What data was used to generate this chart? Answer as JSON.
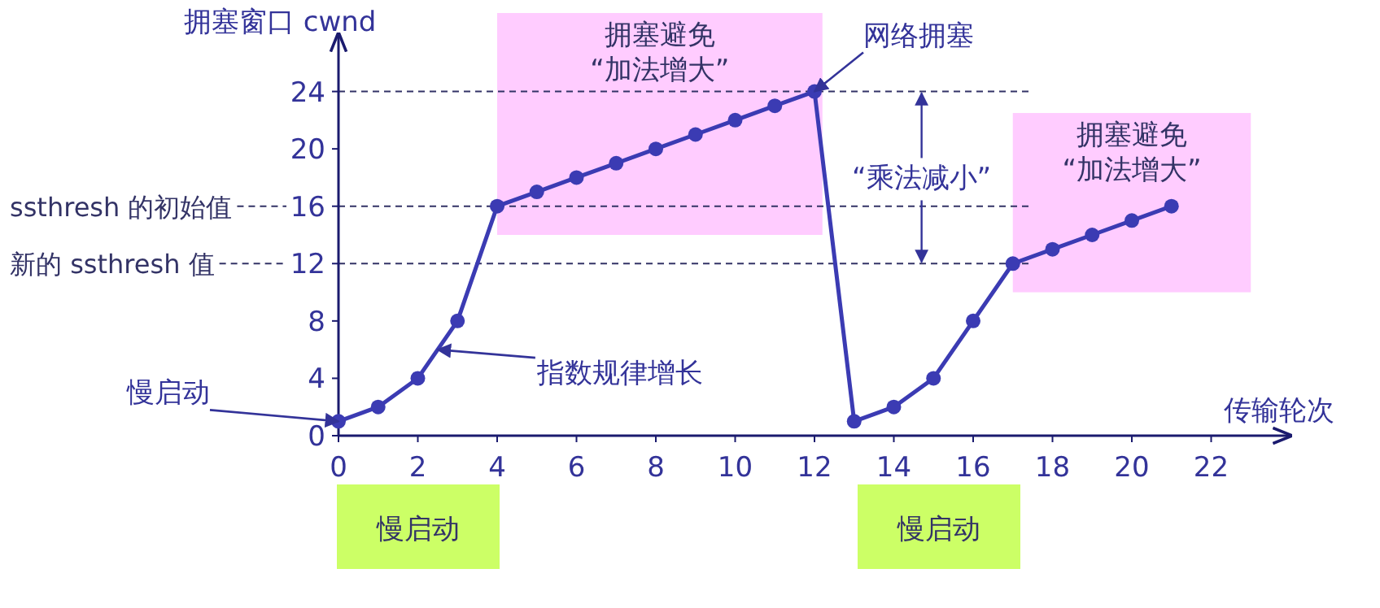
{
  "chart_data": {
    "type": "line",
    "xlabel": "传输轮次",
    "ylabel": "拥塞窗口 cwnd",
    "x": [
      0,
      1,
      2,
      3,
      4,
      5,
      6,
      7,
      8,
      9,
      10,
      11,
      12,
      13,
      14,
      15,
      16,
      17,
      18,
      19,
      20,
      21
    ],
    "series": [
      {
        "color": "#3b3bb3",
        "values": [
          1,
          2,
          4,
          8,
          16,
          17,
          18,
          19,
          20,
          21,
          22,
          23,
          24,
          1,
          2,
          4,
          8,
          12,
          13,
          14,
          15,
          16
        ]
      }
    ],
    "xlim": [
      0,
      24
    ],
    "ylim": [
      0,
      28
    ],
    "xticks": [
      0,
      2,
      4,
      6,
      8,
      10,
      12,
      14,
      16,
      18,
      20,
      22
    ],
    "yticks": [
      0,
      4,
      8,
      12,
      16,
      20,
      24
    ],
    "marker": "circle",
    "line_style": "solid",
    "grid": false,
    "ref_lines": [
      {
        "axis": "y",
        "value": 24,
        "label": null
      },
      {
        "axis": "y",
        "value": 16,
        "label": "ssthresh 的初始值"
      },
      {
        "axis": "y",
        "value": 12,
        "label": "新的 ssthresh 值"
      }
    ],
    "bands": [
      {
        "axis": "x",
        "from": 4,
        "to": 12.2,
        "label": "拥塞避免\n“加法增大”",
        "color": "#ffccff"
      },
      {
        "axis": "x",
        "from": 17,
        "to": 23,
        "label": "拥塞避免\n“加法增大”",
        "color": "#ffccff"
      }
    ],
    "annotations": [
      {
        "text": "慢启动",
        "x": 0,
        "y": 1
      },
      {
        "text": "指数规律增长",
        "x": 2.5,
        "y": 6
      },
      {
        "text": "网络拥塞",
        "x": 12,
        "y": 24
      },
      {
        "text": "“乘法减小”",
        "x": 14.7,
        "y": 24
      },
      "慢启动",
      "慢启动"
    ]
  }
}
